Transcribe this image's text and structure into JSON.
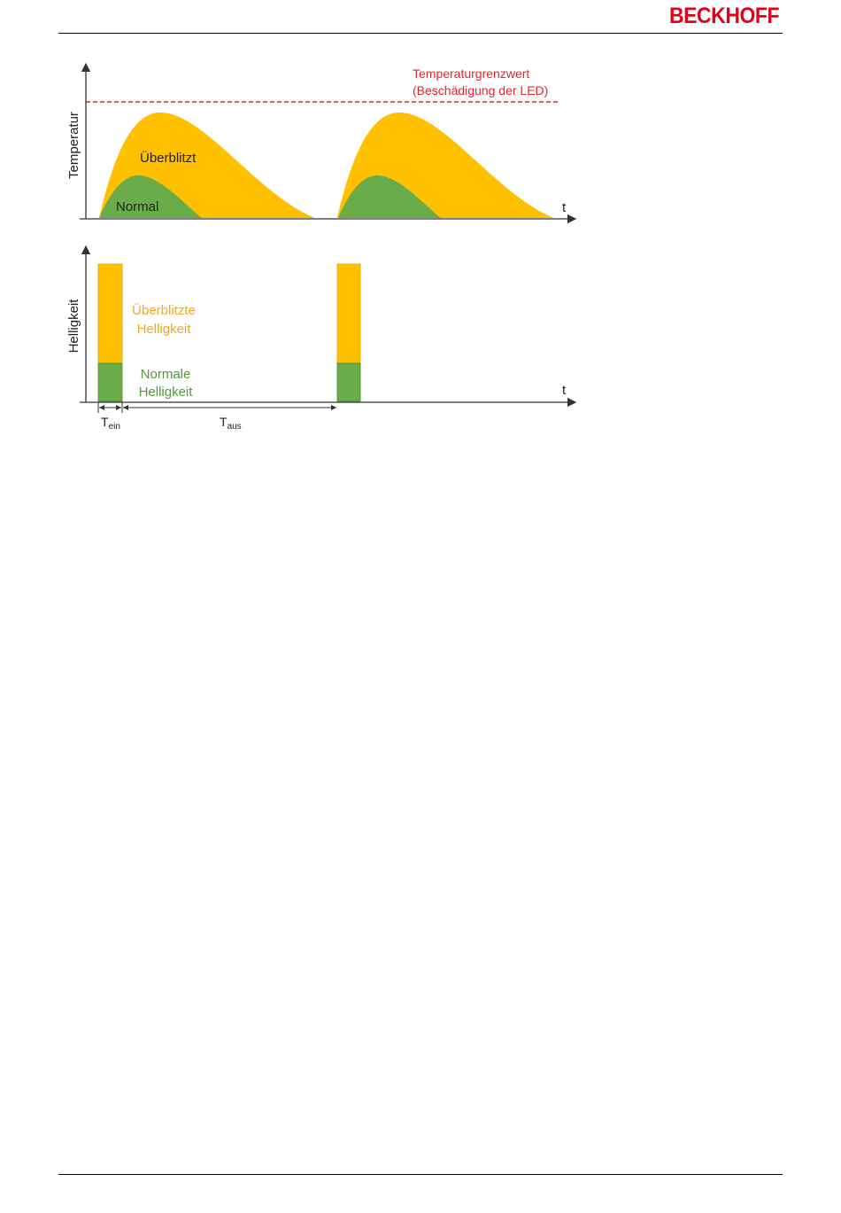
{
  "header": {
    "logo_text": "BECKHOFF"
  },
  "figure": {
    "top_chart": {
      "ylabel": "Temperatur",
      "xlabel": "t",
      "threshold_label_line1": "Temperaturgrenzwert",
      "threshold_label_line2": "(Beschädigung der LED)",
      "overflash_label": "Überblitzt",
      "normal_label": "Normal"
    },
    "bottom_chart": {
      "ylabel": "Helligkeit",
      "xlabel": "t",
      "overflash_label_line1": "Überblitzte",
      "overflash_label_line2": "Helligkeit",
      "normal_label_line1": "Normale",
      "normal_label_line2": "Helligkeit",
      "t_on_main": "T",
      "t_on_sub": "ein",
      "t_off_main": "T",
      "t_off_sub": "aus"
    },
    "colors": {
      "overflash": "#ffc000",
      "normal": "#6aab4a",
      "threshold": "#e8222c",
      "overflash_text": "#f5a623",
      "normal_text": "#4f9a3a"
    }
  }
}
